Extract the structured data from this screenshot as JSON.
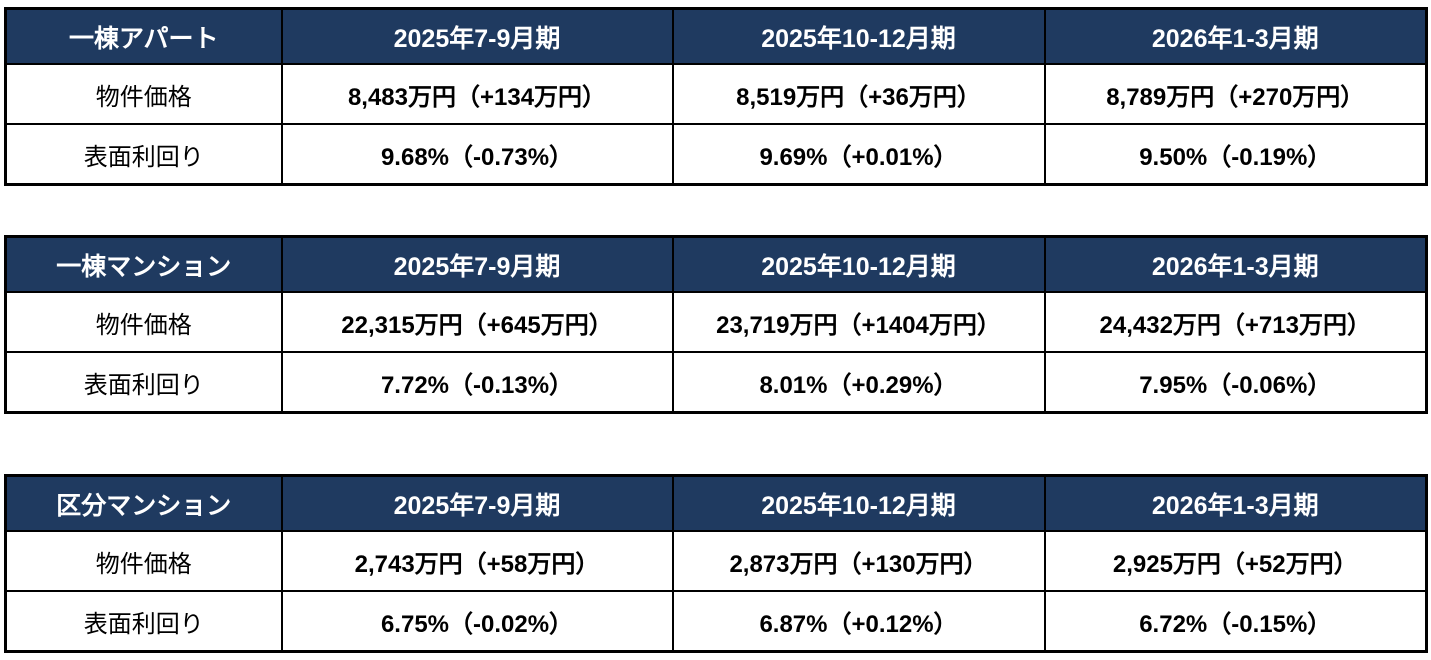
{
  "colors": {
    "header_bg": "#1F3A60",
    "header_text": "#FFFFFF",
    "border": "#000000",
    "body_text": "#000000",
    "page_bg": "#FFFFFF"
  },
  "row_labels": {
    "price": "物件価格",
    "yield": "表面利回り"
  },
  "quarters": [
    "2025年7-9月期",
    "2025年10-12月期",
    "2026年1-3月期"
  ],
  "tables": [
    {
      "category": "一棟アパート",
      "price": [
        "8,483万円（+134万円）",
        "8,519万円（+36万円）",
        "8,789万円（+270万円）"
      ],
      "yield": [
        "9.68%（-0.73%）",
        "9.69%（+0.01%）",
        "9.50%（-0.19%）"
      ]
    },
    {
      "category": "一棟マンション",
      "price": [
        "22,315万円（+645万円）",
        "23,719万円（+1404万円）",
        "24,432万円（+713万円）"
      ],
      "yield": [
        "7.72%（-0.13%）",
        "8.01%（+0.29%）",
        "7.95%（-0.06%）"
      ]
    },
    {
      "category": "区分マンション",
      "price": [
        "2,743万円（+58万円）",
        "2,873万円（+130万円）",
        "2,925万円（+52万円）"
      ],
      "yield": [
        "6.75%（-0.02%）",
        "6.87%（+0.12%）",
        "6.72%（-0.15%）"
      ]
    }
  ]
}
